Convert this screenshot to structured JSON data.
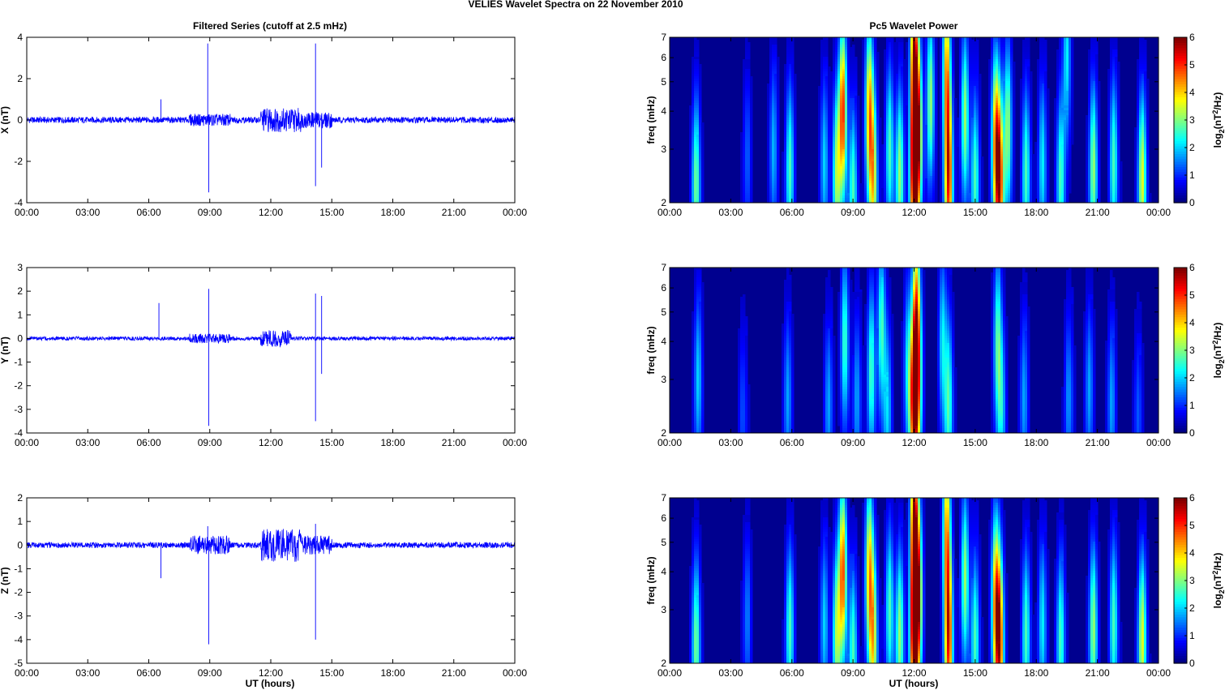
{
  "suptitle": "VELIES Wavelet Spectra on 22 November  2010",
  "left_title": "Filtered Series (cutoff at 2.5 mHz)",
  "right_title": "Pc5 Wavelet Power",
  "xlabel": "UT (hours)",
  "time_ticks": [
    "00:00",
    "03:00",
    "06:00",
    "09:00",
    "12:00",
    "15:00",
    "18:00",
    "21:00",
    "00:00"
  ],
  "freq_ylabel": "freq (mHz)",
  "colorbar_label": "log2(nT2/Hz)",
  "colorbar_ticks": [
    "0",
    "1",
    "2",
    "3",
    "4",
    "5",
    "6"
  ],
  "colors": {
    "series_line": "#0000ff",
    "axes": "#000000"
  },
  "chart_data": [
    {
      "type": "line",
      "title": "Filtered Series (cutoff at 2.5 mHz)",
      "ylabel": "X (nT)",
      "xlim": [
        0,
        24
      ],
      "ylim": [
        -4,
        4
      ],
      "yticks": [
        4,
        2,
        0,
        -2,
        -4
      ],
      "baseline_amplitude": 0.15,
      "activity_windows": [
        [
          8.0,
          10.0,
          0.3
        ],
        [
          11.5,
          13.5,
          0.6
        ],
        [
          13.5,
          15.0,
          0.4
        ]
      ],
      "spikes": [
        [
          6.6,
          1.0
        ],
        [
          8.9,
          3.7
        ],
        [
          8.95,
          -3.5
        ],
        [
          14.2,
          3.7
        ],
        [
          14.2,
          -3.2
        ],
        [
          14.5,
          -2.3
        ]
      ]
    },
    {
      "type": "line",
      "ylabel": "Y (nT)",
      "xlim": [
        0,
        24
      ],
      "ylim": [
        -4,
        3
      ],
      "yticks": [
        3,
        2,
        1,
        0,
        -1,
        -2,
        -3,
        -4
      ],
      "baseline_amplitude": 0.08,
      "activity_windows": [
        [
          8.0,
          10.0,
          0.2
        ],
        [
          11.5,
          13.0,
          0.35
        ]
      ],
      "spikes": [
        [
          6.5,
          1.5
        ],
        [
          8.95,
          2.1
        ],
        [
          8.95,
          -3.7
        ],
        [
          14.2,
          1.9
        ],
        [
          14.2,
          -3.5
        ],
        [
          14.5,
          1.8
        ],
        [
          14.5,
          -1.5
        ]
      ]
    },
    {
      "type": "line",
      "ylabel": "Z (nT)",
      "xlabel": "UT (hours)",
      "xlim": [
        0,
        24
      ],
      "ylim": [
        -5,
        2
      ],
      "yticks": [
        2,
        1,
        0,
        -1,
        -2,
        -3,
        -4,
        -5
      ],
      "baseline_amplitude": 0.12,
      "activity_windows": [
        [
          8.0,
          10.0,
          0.4
        ],
        [
          11.5,
          13.5,
          0.7
        ],
        [
          13.5,
          15.0,
          0.4
        ]
      ],
      "spikes": [
        [
          6.6,
          -1.4
        ],
        [
          8.9,
          0.8
        ],
        [
          8.95,
          -4.2
        ],
        [
          14.2,
          0.9
        ],
        [
          14.2,
          -4.0
        ]
      ]
    },
    {
      "type": "heatmap",
      "title": "Pc5 Wavelet Power",
      "ylabel": "freq (mHz)",
      "xlim": [
        0,
        24
      ],
      "ylim": [
        2,
        7
      ],
      "y_scale": "log",
      "yticks": [
        2,
        3,
        4,
        5,
        6,
        7
      ],
      "colorbar": {
        "label": "log2(nT2/Hz)",
        "range": [
          0,
          6
        ],
        "colormap": "jet"
      },
      "features": [
        {
          "t": 1.3,
          "f": 2.3,
          "p": 2.8
        },
        {
          "t": 3.8,
          "f": 2.8,
          "p": 1.0
        },
        {
          "t": 5.1,
          "f": 3.0,
          "p": 1.6
        },
        {
          "t": 5.9,
          "f": 2.6,
          "p": 2.5
        },
        {
          "t": 7.6,
          "f": 2.7,
          "p": 1.8
        },
        {
          "t": 8.5,
          "f": 4.0,
          "p": 5.0
        },
        {
          "t": 8.2,
          "f": 2.5,
          "p": 3.0
        },
        {
          "t": 9.0,
          "f": 2.2,
          "p": 2.5
        },
        {
          "t": 9.8,
          "f": 4.1,
          "p": 4.0
        },
        {
          "t": 10.0,
          "f": 2.4,
          "p": 3.5
        },
        {
          "t": 10.8,
          "f": 3.0,
          "p": 2.5
        },
        {
          "t": 11.3,
          "f": 2.5,
          "p": 3.0
        },
        {
          "t": 12.0,
          "f": 2.5,
          "p": 6.0
        },
        {
          "t": 12.2,
          "f": 3.5,
          "p": 5.0
        },
        {
          "t": 12.0,
          "f": 6.0,
          "p": 5.0
        },
        {
          "t": 12.8,
          "f": 4.4,
          "p": 3.0
        },
        {
          "t": 13.7,
          "f": 2.4,
          "p": 5.0
        },
        {
          "t": 13.6,
          "f": 5.5,
          "p": 4.0
        },
        {
          "t": 14.5,
          "f": 3.8,
          "p": 3.0
        },
        {
          "t": 15.0,
          "f": 2.4,
          "p": 2.5
        },
        {
          "t": 16.0,
          "f": 3.3,
          "p": 4.0
        },
        {
          "t": 16.2,
          "f": 2.4,
          "p": 5.0
        },
        {
          "t": 16.6,
          "f": 3.5,
          "p": 3.0
        },
        {
          "t": 17.5,
          "f": 2.5,
          "p": 2.5
        },
        {
          "t": 18.3,
          "f": 2.7,
          "p": 2.0
        },
        {
          "t": 19.2,
          "f": 2.4,
          "p": 2.5
        },
        {
          "t": 19.5,
          "f": 6.0,
          "p": 2.0
        },
        {
          "t": 20.8,
          "f": 2.6,
          "p": 3.0
        },
        {
          "t": 21.8,
          "f": 2.7,
          "p": 2.5
        },
        {
          "t": 23.2,
          "f": 2.4,
          "p": 3.5
        }
      ]
    },
    {
      "type": "heatmap",
      "ylabel": "freq (mHz)",
      "xlim": [
        0,
        24
      ],
      "ylim": [
        2,
        7
      ],
      "y_scale": "log",
      "yticks": [
        2,
        3,
        4,
        5,
        6,
        7
      ],
      "colorbar": {
        "label": "log2(nT2/Hz)",
        "range": [
          0,
          6
        ],
        "colormap": "jet"
      },
      "features": [
        {
          "t": 1.4,
          "f": 3.0,
          "p": 1.8
        },
        {
          "t": 3.6,
          "f": 2.3,
          "p": 1.0
        },
        {
          "t": 5.8,
          "f": 2.6,
          "p": 1.5
        },
        {
          "t": 7.8,
          "f": 2.5,
          "p": 1.5
        },
        {
          "t": 8.6,
          "f": 4.0,
          "p": 2.5
        },
        {
          "t": 9.2,
          "f": 2.6,
          "p": 1.5
        },
        {
          "t": 9.9,
          "f": 3.2,
          "p": 2.5
        },
        {
          "t": 10.4,
          "f": 4.5,
          "p": 2.5
        },
        {
          "t": 10.7,
          "f": 2.4,
          "p": 1.8
        },
        {
          "t": 11.7,
          "f": 3.3,
          "p": 2.0
        },
        {
          "t": 12.0,
          "f": 2.6,
          "p": 5.5
        },
        {
          "t": 12.2,
          "f": 3.2,
          "p": 3.5
        },
        {
          "t": 12.1,
          "f": 5.5,
          "p": 3.0
        },
        {
          "t": 13.4,
          "f": 4.0,
          "p": 2.0
        },
        {
          "t": 13.7,
          "f": 2.5,
          "p": 2.5
        },
        {
          "t": 16.1,
          "f": 4.0,
          "p": 2.5
        },
        {
          "t": 16.3,
          "f": 2.4,
          "p": 1.8
        },
        {
          "t": 17.4,
          "f": 2.6,
          "p": 1.5
        },
        {
          "t": 19.6,
          "f": 2.6,
          "p": 1.5
        },
        {
          "t": 20.6,
          "f": 2.8,
          "p": 1.5
        },
        {
          "t": 21.7,
          "f": 2.5,
          "p": 1.5
        },
        {
          "t": 23.0,
          "f": 2.3,
          "p": 1.0
        }
      ]
    },
    {
      "type": "heatmap",
      "xlabel": "UT (hours)",
      "ylabel": "freq (mHz)",
      "xlim": [
        0,
        24
      ],
      "ylim": [
        2,
        7
      ],
      "y_scale": "log",
      "yticks": [
        2,
        3,
        4,
        5,
        6,
        7
      ],
      "colorbar": {
        "label": "log2(nT2/Hz)",
        "range": [
          0,
          6
        ],
        "colormap": "jet"
      },
      "features": [
        {
          "t": 1.3,
          "f": 2.3,
          "p": 2.8
        },
        {
          "t": 3.8,
          "f": 2.8,
          "p": 1.2
        },
        {
          "t": 5.9,
          "f": 2.6,
          "p": 2.5
        },
        {
          "t": 7.6,
          "f": 2.7,
          "p": 1.8
        },
        {
          "t": 8.5,
          "f": 4.0,
          "p": 4.8
        },
        {
          "t": 8.2,
          "f": 2.5,
          "p": 3.0
        },
        {
          "t": 9.0,
          "f": 2.2,
          "p": 2.5
        },
        {
          "t": 9.8,
          "f": 4.1,
          "p": 3.8
        },
        {
          "t": 10.0,
          "f": 2.4,
          "p": 3.5
        },
        {
          "t": 10.8,
          "f": 3.0,
          "p": 2.5
        },
        {
          "t": 11.3,
          "f": 2.5,
          "p": 3.0
        },
        {
          "t": 12.0,
          "f": 2.5,
          "p": 6.0
        },
        {
          "t": 12.2,
          "f": 3.5,
          "p": 5.0
        },
        {
          "t": 12.0,
          "f": 6.0,
          "p": 5.0
        },
        {
          "t": 13.7,
          "f": 2.4,
          "p": 5.0
        },
        {
          "t": 13.6,
          "f": 5.5,
          "p": 4.0
        },
        {
          "t": 14.5,
          "f": 3.8,
          "p": 3.0
        },
        {
          "t": 15.0,
          "f": 2.4,
          "p": 2.5
        },
        {
          "t": 16.0,
          "f": 3.3,
          "p": 4.0
        },
        {
          "t": 16.2,
          "f": 2.4,
          "p": 5.0
        },
        {
          "t": 17.5,
          "f": 2.5,
          "p": 2.5
        },
        {
          "t": 18.3,
          "f": 2.7,
          "p": 2.0
        },
        {
          "t": 19.2,
          "f": 2.4,
          "p": 2.5
        },
        {
          "t": 20.8,
          "f": 2.6,
          "p": 3.0
        },
        {
          "t": 21.8,
          "f": 2.7,
          "p": 2.5
        },
        {
          "t": 23.2,
          "f": 2.4,
          "p": 3.5
        }
      ]
    }
  ]
}
